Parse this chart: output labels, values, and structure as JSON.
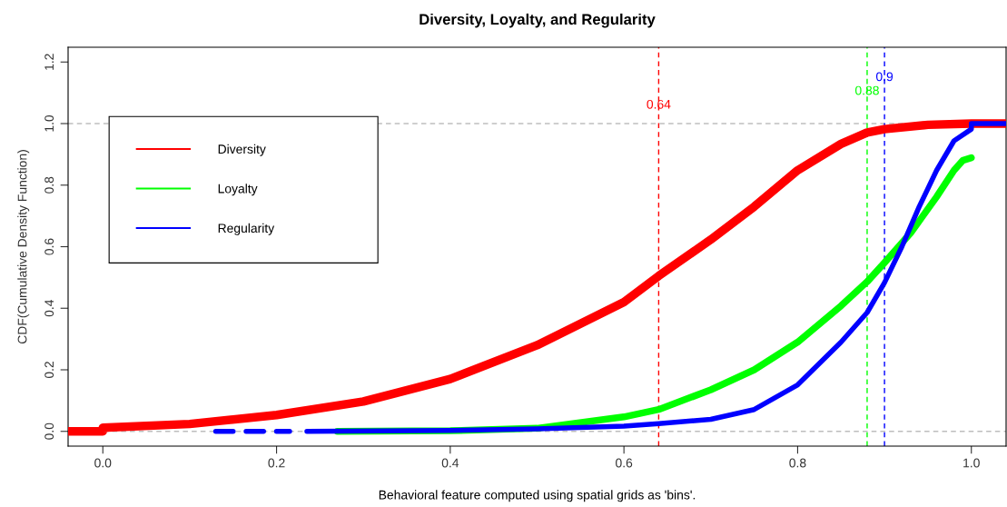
{
  "chart_data": {
    "type": "line",
    "title": "Diversity, Loyalty, and Regularity",
    "xlabel": "Behavioral feature computed using spatial grids as 'bins'.",
    "ylabel": "CDF(Cumulative Density Function)",
    "series": [
      {
        "name": "Diversity",
        "color": "#ff0000",
        "x": [
          -0.04,
          0,
          0,
          0.1,
          0.2,
          0.3,
          0.4,
          0.5,
          0.6,
          0.64,
          0.7,
          0.75,
          0.8,
          0.85,
          0.88,
          0.9,
          0.95,
          1.0,
          1.04
        ],
        "values": [
          0,
          0,
          0.012,
          0.024,
          0.053,
          0.097,
          0.17,
          0.28,
          0.42,
          0.505,
          0.623,
          0.73,
          0.848,
          0.934,
          0.971,
          0.982,
          0.996,
          1.0,
          1.0
        ]
      },
      {
        "name": "Loyalty",
        "color": "#00ff00",
        "x": [
          0.27,
          0.4,
          0.5,
          0.6,
          0.64,
          0.7,
          0.75,
          0.8,
          0.85,
          0.88,
          0.9,
          0.93,
          0.96,
          0.98,
          0.99,
          1.0
        ],
        "values": [
          0,
          0.002,
          0.01,
          0.047,
          0.071,
          0.135,
          0.2,
          0.29,
          0.408,
          0.486,
          0.548,
          0.644,
          0.762,
          0.848,
          0.88,
          0.889
        ]
      },
      {
        "name": "Regularity",
        "color": "#0000ff",
        "x": [
          0.13,
          0.15,
          0.157,
          0.165,
          0.185,
          0.192,
          0.2,
          0.215,
          0.225,
          0.235,
          0.4,
          0.5,
          0.6,
          0.64,
          0.7,
          0.75,
          0.8,
          0.85,
          0.88,
          0.9,
          0.92,
          0.94,
          0.96,
          0.98,
          1.0,
          1.0,
          1.04
        ],
        "values": [
          0,
          0,
          null,
          0,
          0,
          null,
          0,
          0,
          null,
          0,
          0.003,
          0.008,
          0.017,
          0.025,
          0.039,
          0.071,
          0.151,
          0.29,
          0.386,
          0.483,
          0.6,
          0.73,
          0.848,
          0.944,
          0.982,
          1.0,
          1.0
        ]
      }
    ],
    "ref_lines": [
      {
        "axis": "y",
        "value": 0,
        "color": "#bebebe",
        "line_style": "dashed"
      },
      {
        "axis": "y",
        "value": 1,
        "color": "#bebebe",
        "line_style": "dashed"
      },
      {
        "axis": "x",
        "value": 0.64,
        "label": "0.64",
        "color": "#ff0000",
        "line_style": "dashed"
      },
      {
        "axis": "x",
        "value": 0.88,
        "label": "0.88",
        "color": "#00ff00",
        "line_style": "dashed"
      },
      {
        "axis": "x",
        "value": 0.9,
        "label": "0.9",
        "color": "#0000ff",
        "line_style": "dashed"
      }
    ],
    "xlim": [
      -0.04,
      1.04
    ],
    "ylim": [
      -0.048,
      1.248
    ],
    "xticks": [
      {
        "value": 0,
        "label": "0.0"
      },
      0.2,
      0.4,
      0.6,
      0.8,
      {
        "value": 1,
        "label": "1.0"
      }
    ],
    "yticks": [
      {
        "value": 0,
        "label": "0.0"
      },
      0.2,
      0.4,
      0.6,
      0.8,
      {
        "value": 1,
        "label": "1.0"
      },
      1.2
    ],
    "grid": false,
    "legend": "top left",
    "marker": "none",
    "line_style": "solid"
  }
}
